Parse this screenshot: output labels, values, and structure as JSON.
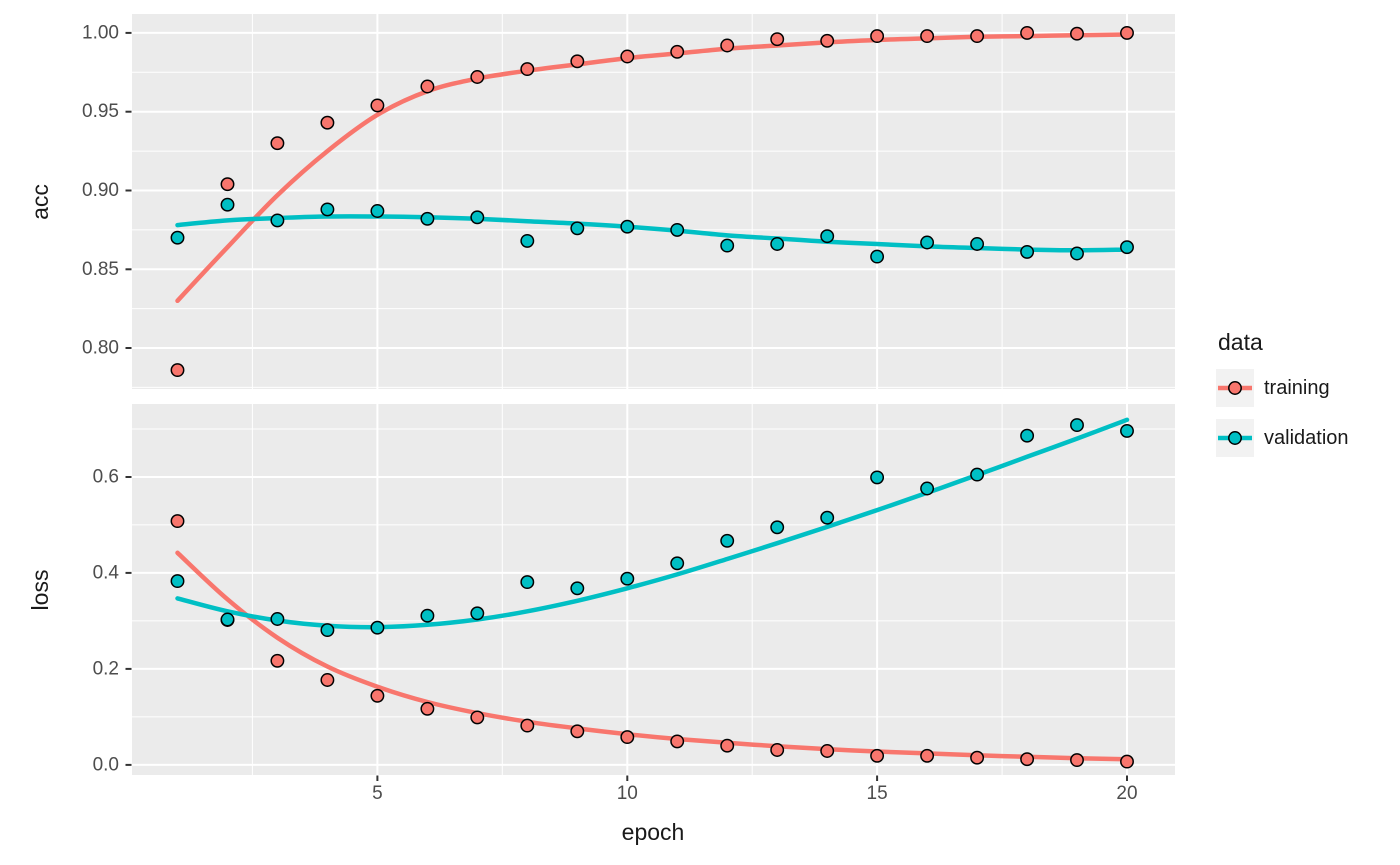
{
  "colors": {
    "training": "#F8766D",
    "validation": "#00BFC4",
    "panel_background": "#EBEBEB",
    "gridline": "#FFFFFF",
    "tick_label": "#4D4D4D",
    "axis_title": "#1a1a1a",
    "tick_mark": "#333333",
    "point_stroke": "#000000",
    "legend_key_background": "#F2F2F2"
  },
  "legend": {
    "title": "data",
    "entries": [
      {
        "label": "training",
        "color": "#F8766D"
      },
      {
        "label": "validation",
        "color": "#00BFC4"
      }
    ]
  },
  "chart_data": [
    {
      "type": "scatter",
      "facet": "acc",
      "title": "",
      "xlabel": "epoch",
      "ylabel": "acc",
      "x": [
        1,
        2,
        3,
        4,
        5,
        6,
        7,
        8,
        9,
        10,
        11,
        12,
        13,
        14,
        15,
        16,
        17,
        18,
        19,
        20
      ],
      "xlim": [
        0.09,
        20.96
      ],
      "ylim": [
        0.774,
        1.012
      ],
      "xticks": {
        "major": [
          5,
          10,
          15,
          20
        ],
        "labels": [
          "5",
          "10",
          "15",
          "20"
        ],
        "minor": [
          2.5,
          7.5,
          12.5,
          17.5
        ]
      },
      "yticks": {
        "major": [
          1.0,
          0.95,
          0.9,
          0.85,
          0.8
        ],
        "labels": [
          "1.00",
          "0.95",
          "0.90",
          "0.85",
          "0.80"
        ],
        "minor": [
          0.975,
          0.925,
          0.875,
          0.825,
          0.775
        ]
      },
      "grid": true,
      "legend_position": "right",
      "series": [
        {
          "name": "training",
          "points": [
            0.786,
            0.904,
            0.93,
            0.943,
            0.954,
            0.966,
            0.972,
            0.977,
            0.982,
            0.985,
            0.988,
            0.992,
            0.996,
            0.995,
            0.998,
            0.998,
            0.998,
            1.0,
            0.9995,
            1.0
          ],
          "smooth": [
            0.83,
            0.864,
            0.897,
            0.925,
            0.948,
            0.963,
            0.971,
            0.976,
            0.98,
            0.984,
            0.987,
            0.99,
            0.992,
            0.994,
            0.9955,
            0.9965,
            0.9975,
            0.998,
            0.9985,
            0.999
          ]
        },
        {
          "name": "validation",
          "points": [
            0.87,
            0.891,
            0.881,
            0.888,
            0.887,
            0.882,
            0.883,
            0.868,
            0.876,
            0.877,
            0.875,
            0.865,
            0.866,
            0.871,
            0.858,
            0.867,
            0.866,
            0.861,
            0.86,
            0.864
          ],
          "smooth": [
            0.878,
            0.881,
            0.8825,
            0.8835,
            0.8835,
            0.883,
            0.882,
            0.8805,
            0.879,
            0.877,
            0.8745,
            0.8715,
            0.8695,
            0.8675,
            0.866,
            0.8645,
            0.8635,
            0.8625,
            0.862,
            0.8625
          ]
        }
      ]
    },
    {
      "type": "scatter",
      "facet": "loss",
      "title": "",
      "xlabel": "epoch",
      "ylabel": "loss",
      "x": [
        1,
        2,
        3,
        4,
        5,
        6,
        7,
        8,
        9,
        10,
        11,
        12,
        13,
        14,
        15,
        16,
        17,
        18,
        19,
        20
      ],
      "xlim": [
        0.09,
        20.96
      ],
      "ylim": [
        -0.021,
        0.752
      ],
      "xticks": {
        "major": [
          5,
          10,
          15,
          20
        ],
        "labels": [
          "5",
          "10",
          "15",
          "20"
        ],
        "minor": [
          2.5,
          7.5,
          12.5,
          17.5
        ]
      },
      "yticks": {
        "major": [
          0.6,
          0.4,
          0.2,
          0.0
        ],
        "labels": [
          "0.6",
          "0.4",
          "0.2",
          "0.0"
        ],
        "minor": [
          0.7,
          0.5,
          0.3,
          0.1
        ]
      },
      "grid": true,
      "legend_position": "right",
      "series": [
        {
          "name": "training",
          "points": [
            0.508,
            0.302,
            0.217,
            0.177,
            0.144,
            0.117,
            0.099,
            0.082,
            0.07,
            0.058,
            0.049,
            0.04,
            0.031,
            0.029,
            0.019,
            0.019,
            0.015,
            0.012,
            0.01,
            0.007
          ],
          "smooth": [
            0.442,
            0.345,
            0.265,
            0.205,
            0.163,
            0.131,
            0.108,
            0.09,
            0.076,
            0.064,
            0.054,
            0.046,
            0.039,
            0.033,
            0.028,
            0.024,
            0.02,
            0.017,
            0.014,
            0.012
          ]
        },
        {
          "name": "validation",
          "points": [
            0.383,
            0.303,
            0.304,
            0.281,
            0.286,
            0.311,
            0.316,
            0.381,
            0.368,
            0.388,
            0.42,
            0.467,
            0.495,
            0.515,
            0.599,
            0.576,
            0.605,
            0.686,
            0.708,
            0.696
          ],
          "smooth": [
            0.347,
            0.32,
            0.301,
            0.29,
            0.287,
            0.292,
            0.303,
            0.32,
            0.342,
            0.368,
            0.397,
            0.429,
            0.462,
            0.496,
            0.531,
            0.567,
            0.604,
            0.642,
            0.68,
            0.719
          ]
        }
      ]
    }
  ]
}
